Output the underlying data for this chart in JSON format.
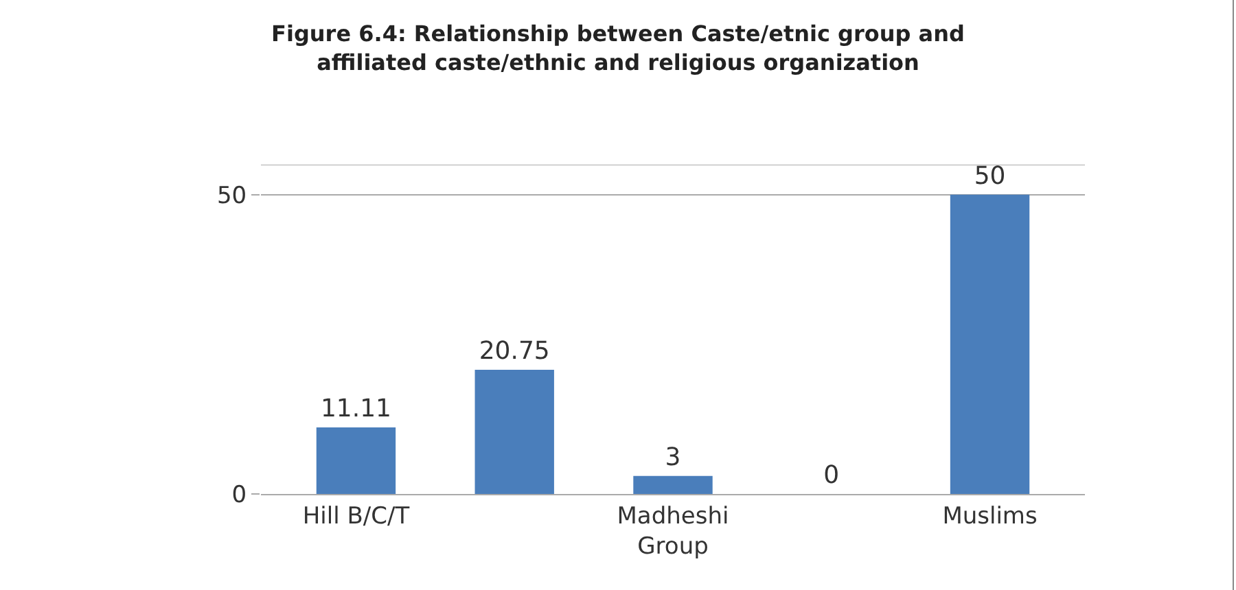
{
  "chart_data": {
    "type": "bar",
    "title": "Figure 6.4: Relationship between Caste/etnic group and affiliated caste/ethnic and religious organization",
    "categories": [
      "Hill B/C/T",
      null,
      "Madheshi Group",
      null,
      "Muslims"
    ],
    "values": [
      11.11,
      20.75,
      3,
      0,
      50
    ],
    "color": "#4a7ebb",
    "ylim": [
      0,
      55
    ],
    "yticks": [
      0,
      50
    ],
    "grid": "y",
    "data_labels": true
  }
}
